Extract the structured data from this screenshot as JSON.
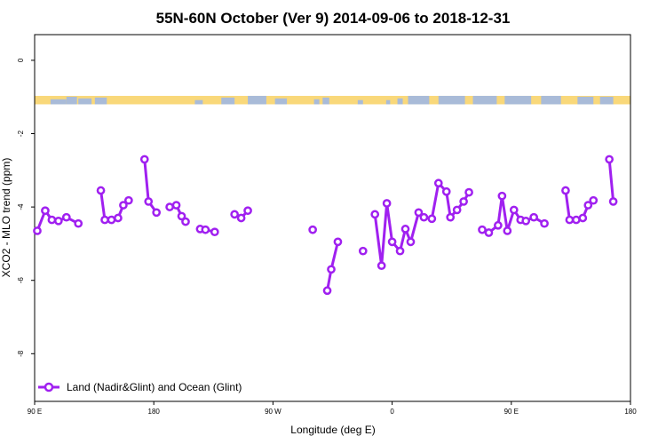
{
  "chart_data": {
    "type": "line",
    "title": "55N-60N October (Ver 9)   2014-09-06 to 2018-12-31",
    "xlabel": "Longitude (deg E)",
    "ylabel": "XCO2 - MLO trend (ppm)",
    "x_ticks": [
      {
        "value": 90,
        "label": "90 E"
      },
      {
        "value": 180,
        "label": "180"
      },
      {
        "value": 270,
        "label": "90 W"
      },
      {
        "value": 360,
        "label": "0"
      },
      {
        "value": 450,
        "label": "90 E"
      },
      {
        "value": 540,
        "label": "180"
      }
    ],
    "y_ticks": [
      0,
      -2,
      -4,
      -6,
      -8
    ],
    "xlim": [
      90,
      540
    ],
    "ylim": [
      -9.3,
      0.7
    ],
    "grid": false,
    "legend_position": "bottom-left",
    "land_strip": {
      "y_range": [
        -1.2,
        -0.97
      ],
      "land_color": "#a9bbd8",
      "ocean_color": "#f9d87a"
    },
    "series": [
      {
        "name": "Land (Nadir&Glint) and Ocean (Glint)",
        "color": "#a020f0",
        "segments": [
          [
            [
              92,
              -4.65
            ],
            [
              98,
              -4.1
            ],
            [
              103,
              -4.35
            ],
            [
              108,
              -4.38
            ],
            [
              114,
              -4.28
            ],
            [
              123,
              -4.45
            ]
          ],
          [
            [
              140,
              -3.55
            ],
            [
              143,
              -4.35
            ],
            [
              148,
              -4.35
            ],
            [
              153,
              -4.3
            ],
            [
              157,
              -3.95
            ],
            [
              161,
              -3.82
            ]
          ],
          [
            [
              173,
              -2.7
            ],
            [
              176,
              -3.85
            ],
            [
              182,
              -4.15
            ]
          ],
          [
            [
              192,
              -4.0
            ],
            [
              197,
              -3.95
            ],
            [
              201,
              -4.25
            ],
            [
              204,
              -4.4
            ]
          ],
          [
            [
              215,
              -4.6
            ],
            [
              219,
              -4.62
            ],
            [
              226,
              -4.68
            ]
          ],
          [
            [
              241,
              -4.2
            ],
            [
              246,
              -4.3
            ],
            [
              251,
              -4.1
            ]
          ],
          [
            [
              300,
              -4.62
            ]
          ],
          [
            [
              311,
              -6.28
            ],
            [
              314,
              -5.7
            ],
            [
              319,
              -4.95
            ]
          ],
          [
            [
              338,
              -5.2
            ]
          ],
          [
            [
              347,
              -4.2
            ],
            [
              352,
              -5.6
            ],
            [
              356,
              -3.9
            ],
            [
              360,
              -4.95
            ],
            [
              366,
              -5.2
            ],
            [
              370,
              -4.6
            ],
            [
              374,
              -4.95
            ],
            [
              380,
              -4.15
            ],
            [
              384,
              -4.28
            ],
            [
              390,
              -4.32
            ],
            [
              395,
              -3.35
            ],
            [
              401,
              -3.58
            ],
            [
              404,
              -4.28
            ],
            [
              409,
              -4.08
            ],
            [
              414,
              -3.85
            ],
            [
              418,
              -3.6
            ]
          ],
          [
            [
              428,
              -4.62
            ],
            [
              433,
              -4.7
            ],
            [
              440,
              -4.5
            ],
            [
              443,
              -3.7
            ],
            [
              447,
              -4.65
            ],
            [
              452,
              -4.08
            ],
            [
              457,
              -4.35
            ],
            [
              461,
              -4.38
            ],
            [
              467,
              -4.28
            ],
            [
              475,
              -4.45
            ]
          ],
          [
            [
              491,
              -3.55
            ],
            [
              494,
              -4.35
            ],
            [
              499,
              -4.35
            ],
            [
              504,
              -4.3
            ],
            [
              508,
              -3.95
            ],
            [
              512,
              -3.82
            ]
          ],
          [
            [
              524,
              -2.7
            ],
            [
              527,
              -3.85
            ]
          ]
        ]
      }
    ]
  }
}
